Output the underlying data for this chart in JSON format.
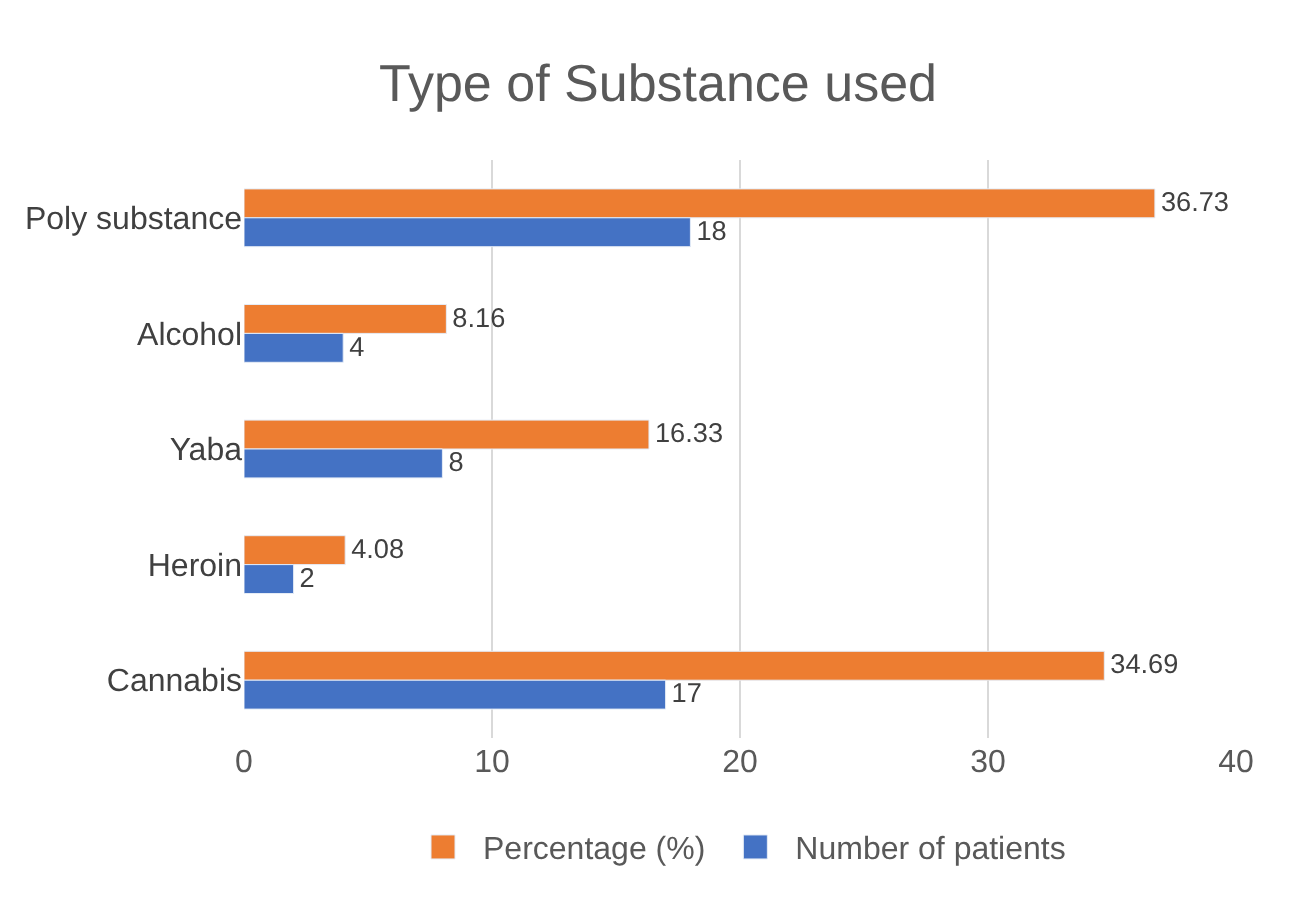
{
  "chart_data": {
    "type": "bar",
    "orientation": "horizontal",
    "title": "Type of Substance used",
    "categories": [
      "Poly substance",
      "Alcohol",
      "Yaba",
      "Heroin",
      "Cannabis"
    ],
    "series": [
      {
        "name": "Percentage (%)",
        "color": "#ed7d31",
        "values": [
          36.73,
          8.16,
          16.33,
          4.08,
          34.69
        ]
      },
      {
        "name": "Number of patients",
        "color": "#4472c4",
        "values": [
          18,
          4,
          8,
          2,
          17
        ]
      }
    ],
    "xlim": [
      0,
      40
    ],
    "xticks": [
      0,
      10,
      20,
      30,
      40
    ],
    "grid": "x",
    "legend": "bottom",
    "data_labels": true
  }
}
